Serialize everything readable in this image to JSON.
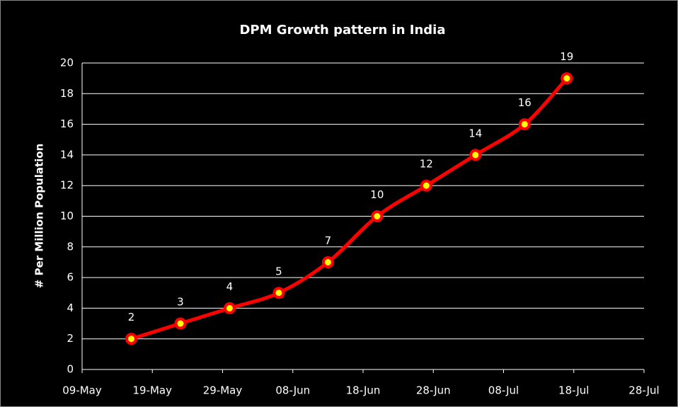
{
  "chart_data": {
    "type": "line",
    "title": "DPM Growth pattern in India",
    "y_label": "# Per Million Population",
    "x": [
      "16-May",
      "23-May",
      "30-May",
      "06-Jun",
      "13-Jun",
      "20-Jun",
      "27-Jun",
      "04-Jul",
      "11-Jul",
      "17-Jul"
    ],
    "series": [
      {
        "name": "DPM",
        "color": "#ff0000",
        "marker_color": "#ffff00",
        "values": [
          2,
          3,
          4,
          5,
          7,
          10,
          12,
          14,
          16,
          19
        ]
      }
    ],
    "xlim": [
      "09-May",
      "28-Jul"
    ],
    "xticks": [
      "09-May",
      "19-May",
      "29-May",
      "08-Jun",
      "18-Jun",
      "28-Jun",
      "08-Jul",
      "18-Jul",
      "28-Jul"
    ],
    "ylim": [
      0,
      20
    ],
    "yticks": [
      0,
      2,
      4,
      6,
      8,
      10,
      12,
      14,
      16,
      18,
      20
    ],
    "grid": true,
    "background": "#000000"
  }
}
